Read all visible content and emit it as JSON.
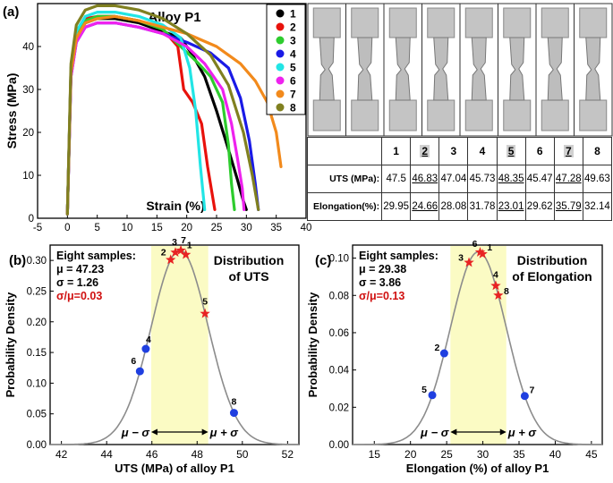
{
  "panel_labels": {
    "a": "(a)",
    "b": "(b)",
    "c": "(c)"
  },
  "colors": [
    "#000000",
    "#e8120c",
    "#2ecc2e",
    "#1a1ae6",
    "#22e5e5",
    "#ee22ee",
    "#f28a1c",
    "#808020"
  ],
  "table": {
    "samples": [
      "1",
      "2",
      "3",
      "4",
      "5",
      "6",
      "7",
      "8"
    ],
    "highlighted": [
      1,
      4,
      6
    ],
    "uts_label": "UTS (MPa):",
    "elong_label": "Elongation(%):",
    "uts": [
      "47.5",
      "46.83",
      "47.04",
      "45.73",
      "48.35",
      "45.47",
      "47.28",
      "49.63"
    ],
    "elong": [
      "29.95",
      "24.66",
      "28.08",
      "31.78",
      "23.01",
      "29.62",
      "35.79",
      "32.14"
    ]
  },
  "chart_data": [
    {
      "type": "line",
      "title": "Alloy P1",
      "xlabel": "Strain (%)",
      "ylabel": "Stress (MPa)",
      "xlim": [
        -5,
        40
      ],
      "ylim": [
        0,
        50
      ],
      "xticks": [
        "-5",
        "0",
        "5",
        "10",
        "15",
        "20",
        "25",
        "30",
        "35",
        "40"
      ],
      "yticks": [
        "0",
        "10",
        "20",
        "30",
        "40"
      ],
      "legend": [
        "1",
        "2",
        "3",
        "4",
        "5",
        "6",
        "7",
        "8"
      ],
      "legend_position": "top-right",
      "series": [
        {
          "name": "1",
          "x": [
            0,
            0.6,
            1.5,
            3,
            5,
            8,
            12,
            16,
            19,
            21,
            23,
            25,
            27,
            28.5,
            29.5,
            30
          ],
          "y": [
            1,
            34,
            42,
            45.5,
            46.5,
            46.5,
            45.5,
            43.5,
            42,
            38,
            33,
            25,
            16,
            9,
            4,
            2
          ]
        },
        {
          "name": "2",
          "x": [
            0,
            0.6,
            1.5,
            3,
            5,
            8,
            12,
            16,
            18.5,
            19.5,
            21,
            22.5,
            23.5,
            24.7
          ],
          "y": [
            1,
            35,
            43,
            46.5,
            47,
            47,
            46,
            44,
            40,
            30,
            27,
            22,
            12,
            2
          ]
        },
        {
          "name": "3",
          "x": [
            0,
            0.6,
            1.5,
            3,
            5,
            8,
            12,
            16,
            19,
            22,
            24,
            26,
            27,
            27.5,
            28
          ],
          "y": [
            1,
            34,
            42.5,
            46,
            47,
            47,
            46,
            44,
            40,
            36,
            33,
            27,
            17,
            8,
            2
          ]
        },
        {
          "name": "4",
          "x": [
            0,
            0.6,
            1.5,
            3,
            5,
            8,
            12,
            16,
            20,
            24,
            27,
            29,
            30.5,
            31.5,
            32
          ],
          "y": [
            1,
            33,
            41,
            44.5,
            45.5,
            45.5,
            44.5,
            43,
            41,
            38.5,
            35,
            28,
            18,
            8,
            2
          ]
        },
        {
          "name": "5",
          "x": [
            0,
            0.6,
            1.5,
            3,
            5,
            8,
            12,
            16,
            19,
            20.5,
            21.5,
            22.3,
            23
          ],
          "y": [
            1,
            35,
            43.5,
            47,
            48,
            48,
            47,
            45,
            42,
            35,
            25,
            12,
            2
          ]
        },
        {
          "name": "6",
          "x": [
            0,
            0.6,
            1.5,
            3,
            5,
            8,
            12,
            16,
            20,
            23,
            26,
            27.5,
            28.5,
            29.3,
            29.6
          ],
          "y": [
            1,
            33,
            41,
            44.5,
            45.5,
            45.5,
            44.5,
            43,
            40,
            36,
            30,
            22,
            14,
            7,
            2
          ]
        },
        {
          "name": "7",
          "x": [
            0,
            0.6,
            1.5,
            3,
            5,
            8,
            12,
            16,
            20,
            25,
            29,
            31.5,
            33.5,
            35,
            35.8
          ],
          "y": [
            1,
            34,
            42,
            45.5,
            46.5,
            47,
            46,
            44.5,
            43,
            40,
            36,
            32,
            27,
            20,
            12
          ]
        },
        {
          "name": "8",
          "x": [
            0,
            0.6,
            1.5,
            3,
            5,
            8,
            12,
            16,
            20,
            24,
            27,
            29.5,
            31,
            32
          ],
          "y": [
            1,
            36,
            45,
            48.5,
            49.5,
            49.5,
            48.5,
            46.5,
            43,
            38,
            31,
            20,
            10,
            2
          ]
        }
      ]
    },
    {
      "type": "scatter",
      "subtitle": "Distribution of UTS",
      "xlabel": "UTS (MPa) of alloy P1",
      "ylabel": "Probability Density",
      "xlim": [
        41.5,
        52.5
      ],
      "ylim": [
        0,
        0.325
      ],
      "xticks": [
        "42",
        "44",
        "46",
        "48",
        "50",
        "52"
      ],
      "yticks": [
        "0.00",
        "0.05",
        "0.10",
        "0.15",
        "0.20",
        "0.25",
        "0.30"
      ],
      "stats": {
        "header": "Eight samples:",
        "mu": "μ = 47.23",
        "sigma": "σ = 1.26",
        "ratio": "σ/μ=0.03"
      },
      "band": {
        "lo_label": "μ − σ",
        "hi_label": "μ + σ",
        "lo": 45.97,
        "hi": 48.49
      },
      "mean": 47.23,
      "sd": 1.26,
      "points": [
        {
          "label": "1",
          "x": 47.5,
          "marker": "star"
        },
        {
          "label": "2",
          "x": 46.83,
          "marker": "star"
        },
        {
          "label": "3",
          "x": 47.04,
          "marker": "star"
        },
        {
          "label": "4",
          "x": 45.73,
          "marker": "dot"
        },
        {
          "label": "5",
          "x": 48.35,
          "marker": "star"
        },
        {
          "label": "6",
          "x": 45.47,
          "marker": "dot"
        },
        {
          "label": "7",
          "x": 47.28,
          "marker": "star"
        },
        {
          "label": "8",
          "x": 49.63,
          "marker": "dot"
        }
      ]
    },
    {
      "type": "scatter",
      "subtitle": "Distribution of Elongation",
      "xlabel": "Elongation (%) of alloy P1",
      "ylabel": "Probability Density",
      "xlim": [
        12,
        46.5
      ],
      "ylim": [
        0,
        0.107
      ],
      "xticks": [
        "15",
        "20",
        "25",
        "30",
        "35",
        "40",
        "45"
      ],
      "yticks": [
        "0.00",
        "0.02",
        "0.04",
        "0.06",
        "0.08",
        "0.10"
      ],
      "stats": {
        "header": "Eight samples:",
        "mu": "μ = 29.38",
        "sigma": "σ = 3.86",
        "ratio": "σ/μ=0.13"
      },
      "band": {
        "lo_label": "μ − σ",
        "hi_label": "μ + σ",
        "lo": 25.52,
        "hi": 33.24
      },
      "mean": 29.38,
      "sd": 3.86,
      "points": [
        {
          "label": "1",
          "x": 29.95,
          "marker": "star"
        },
        {
          "label": "2",
          "x": 24.66,
          "marker": "dot"
        },
        {
          "label": "3",
          "x": 28.08,
          "marker": "star"
        },
        {
          "label": "4",
          "x": 31.78,
          "marker": "star"
        },
        {
          "label": "5",
          "x": 23.01,
          "marker": "dot"
        },
        {
          "label": "6",
          "x": 29.62,
          "marker": "star"
        },
        {
          "label": "7",
          "x": 35.79,
          "marker": "dot"
        },
        {
          "label": "8",
          "x": 32.14,
          "marker": "star"
        }
      ]
    }
  ]
}
